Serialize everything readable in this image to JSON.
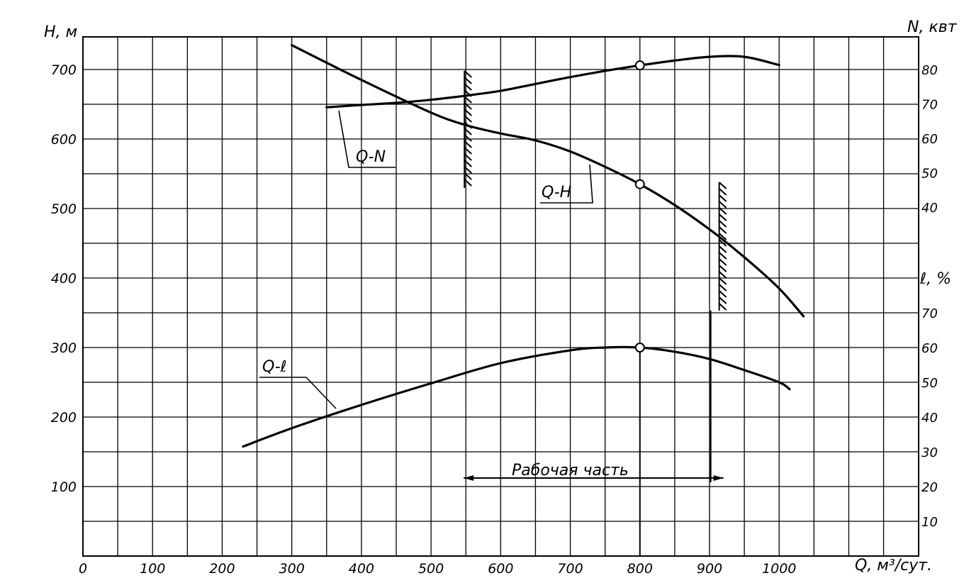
{
  "chart_data": {
    "type": "line",
    "x": {
      "label": "Q, м³/сут.",
      "range": [
        0,
        1200
      ],
      "ticks": [
        "0",
        "100",
        "200",
        "300",
        "400",
        "500",
        "600",
        "700",
        "800",
        "900",
        "1000"
      ]
    },
    "y_left": {
      "label": "H, м",
      "range": [
        0,
        700
      ],
      "ticks": [
        "100",
        "200",
        "300",
        "400",
        "500",
        "600",
        "700"
      ]
    },
    "y_right_power": {
      "label": "N, квт",
      "ticks": [
        "40",
        "50",
        "60",
        "70",
        "80"
      ]
    },
    "y_right_efficiency": {
      "label": "ℓ, %",
      "ticks": [
        "10",
        "20",
        "30",
        "40",
        "50",
        "60",
        "70"
      ]
    },
    "series": [
      {
        "name": "Q-H",
        "axis": "H",
        "points": [
          [
            300,
            735
          ],
          [
            400,
            685
          ],
          [
            500,
            638
          ],
          [
            550,
            620
          ],
          [
            600,
            608
          ],
          [
            650,
            598
          ],
          [
            700,
            582
          ],
          [
            750,
            560
          ],
          [
            800,
            535
          ],
          [
            850,
            505
          ],
          [
            900,
            470
          ],
          [
            950,
            430
          ],
          [
            1000,
            385
          ],
          [
            1035,
            345
          ]
        ]
      },
      {
        "name": "Q-N",
        "axis": "N",
        "points": [
          [
            350,
            69
          ],
          [
            400,
            69.7
          ],
          [
            450,
            70.3
          ],
          [
            500,
            71.2
          ],
          [
            550,
            72.4
          ],
          [
            600,
            73.8
          ],
          [
            650,
            75.8
          ],
          [
            700,
            77.8
          ],
          [
            750,
            79.6
          ],
          [
            800,
            81.2
          ],
          [
            850,
            82.6
          ],
          [
            900,
            83.7
          ],
          [
            950,
            83.7
          ],
          [
            1000,
            81.3
          ]
        ]
      },
      {
        "name": "Q-ℓ",
        "axis": "eff",
        "points": [
          [
            230,
            31.5
          ],
          [
            300,
            36.8
          ],
          [
            400,
            43.5
          ],
          [
            500,
            49.7
          ],
          [
            600,
            55.5
          ],
          [
            700,
            59.2
          ],
          [
            750,
            60
          ],
          [
            800,
            60
          ],
          [
            850,
            58.8
          ],
          [
            900,
            56.7
          ],
          [
            950,
            53.5
          ],
          [
            1000,
            50
          ],
          [
            1015,
            48
          ]
        ]
      }
    ],
    "operating_point": {
      "Q": 800,
      "H": 535,
      "N": 81.2,
      "eff": 60
    },
    "working_range": {
      "label": "Рабочая часть",
      "from": 550,
      "to": 920
    },
    "grid": true
  }
}
